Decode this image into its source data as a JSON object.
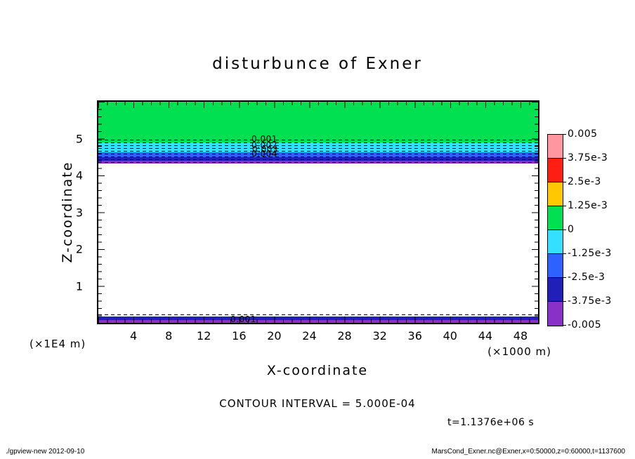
{
  "title": "disturbunce of Exner",
  "plot": {
    "x_axis": {
      "label": "X-coordinate",
      "unit": "(×1000 m)",
      "ticks": [
        "4",
        "8",
        "12",
        "16",
        "20",
        "24",
        "28",
        "32",
        "36",
        "40",
        "44",
        "48"
      ]
    },
    "y_axis": {
      "label": "Z-coordinate",
      "unit": "(×1E4 m)",
      "ticks": [
        "5",
        "4",
        "3",
        "2",
        "1"
      ]
    },
    "contour_labels": [
      "0.001",
      "0.002",
      "0.003",
      "0.004"
    ],
    "bottom_contour_label": "0.001"
  },
  "colorbar": {
    "labels": [
      "0.005",
      "3.75e-3",
      "2.5e-3",
      "1.25e-3",
      "0",
      "-1.25e-3",
      "-2.5e-3",
      "-3.75e-3",
      "-0.005"
    ],
    "colors": [
      "#ff96a0",
      "#ff1e14",
      "#ffc800",
      "#00e050",
      "#35dfff",
      "#2e62ff",
      "#2020b8",
      "#8830c8"
    ]
  },
  "annotations": {
    "contour_interval": "CONTOUR INTERVAL = 5.000E-04",
    "time": "t=1.1376e+06 s"
  },
  "footer": {
    "left": "./gpview-new  2012-09-10",
    "right": "MarsCond_Exner.nc@Exner,x=0:50000,z=0:60000,t=1137600"
  },
  "chart_data": {
    "type": "heatmap",
    "title": "disturbunce of Exner",
    "xlabel": "X-coordinate (×1000 m)",
    "ylabel": "Z-coordinate (×1E4 m)",
    "xlim": [
      0,
      50
    ],
    "ylim": [
      0,
      6
    ],
    "contour_interval": 0.0005,
    "shade_levels": [
      0.005,
      0.00375,
      0.0025,
      0.00125,
      0,
      -0.00125,
      -0.0025,
      -0.00375,
      -0.005
    ],
    "time_label": "t=1.1376e+06 s",
    "legend_position": "right",
    "horizontal_layers": [
      {
        "z_from_1e4m": 4.9,
        "z_to_1e4m": 6.0,
        "shade": "green",
        "value_band": "0 to 1.25e-3"
      },
      {
        "z_from_1e4m": 4.62,
        "z_to_1e4m": 4.9,
        "shade": "cyan",
        "value_band": "-1.25e-3 to 0"
      },
      {
        "z_from_1e4m": 4.49,
        "z_to_1e4m": 4.62,
        "shade": "blue",
        "value_band": "-2.5e-3 to -1.25e-3"
      },
      {
        "z_from_1e4m": 4.4,
        "z_to_1e4m": 4.49,
        "shade": "navy",
        "value_band": "-3.75e-3 to -2.5e-3"
      },
      {
        "z_from_1e4m": 4.32,
        "z_to_1e4m": 4.4,
        "shade": "purple",
        "value_band": "-0.005 to -3.75e-3"
      },
      {
        "z_from_1e4m": 0.17,
        "z_to_1e4m": 4.32,
        "shade": "white",
        "value_band": "unshaded interior"
      },
      {
        "z_from_1e4m": 0.08,
        "z_to_1e4m": 0.17,
        "shade": "navy",
        "value_band": "-3.75e-3 to -2.5e-3"
      },
      {
        "z_from_1e4m": 0.0,
        "z_to_1e4m": 0.08,
        "shade": "purple",
        "value_band": "-0.005 to -3.75e-3"
      }
    ],
    "dashed_contours": "dashed negative contour lines clustered near z=4.4-5.0 (×1E4 m) and near z=0; labels 0.001-0.004"
  }
}
